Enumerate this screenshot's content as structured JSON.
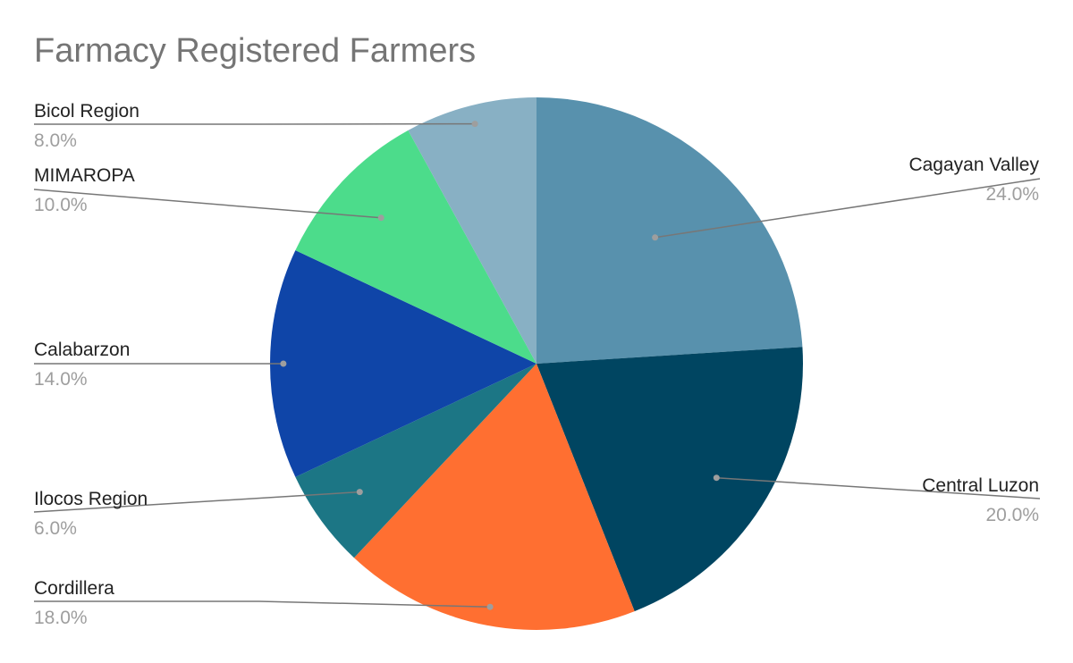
{
  "chart_data": {
    "type": "pie",
    "title": "Farmacy Registered Farmers",
    "start_angle_deg": 0,
    "direction": "clockwise",
    "slices": [
      {
        "label": "Cagayan Valley",
        "value": 24.0,
        "display": "24.0%",
        "color": "#5891ad"
      },
      {
        "label": "Central Luzon",
        "value": 20.0,
        "display": "20.0%",
        "color": "#004561"
      },
      {
        "label": "Cordillera",
        "value": 18.0,
        "display": "18.0%",
        "color": "#ff6f31"
      },
      {
        "label": "Ilocos Region",
        "value": 6.0,
        "display": "6.0%",
        "color": "#1c7685"
      },
      {
        "label": "Calabarzon",
        "value": 14.0,
        "display": "14.0%",
        "color": "#0f45a8"
      },
      {
        "label": "MIMAROPA",
        "value": 10.0,
        "display": "10.0%",
        "color": "#4cdc8b"
      },
      {
        "label": "Bicol Region",
        "value": 8.0,
        "display": "8.0%",
        "color": "#88b0c4"
      }
    ],
    "label_placement": "outside-with-leader-lines"
  }
}
